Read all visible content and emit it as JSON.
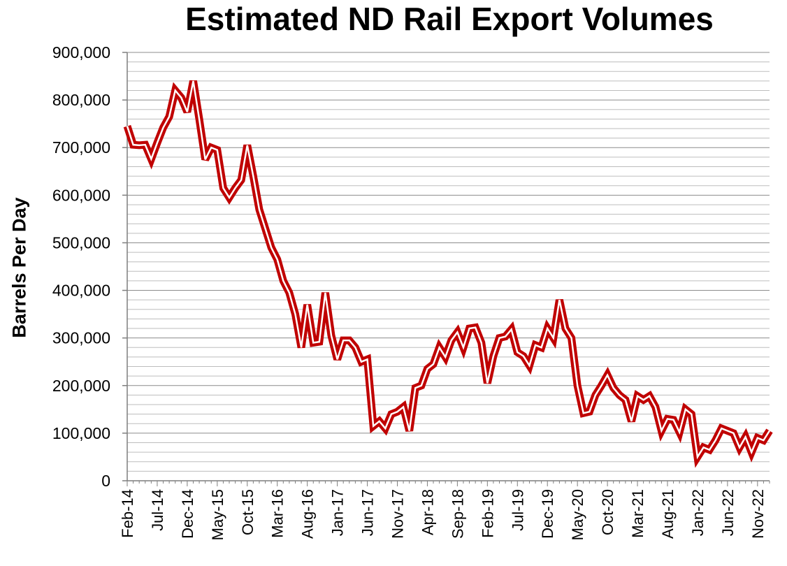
{
  "chart_data": {
    "type": "line",
    "title": "Estimated ND Rail Export Volumes",
    "ylabel": "Barrels Per Day",
    "xlabel": "",
    "ylim": [
      0,
      900000
    ],
    "y_ticks": [
      0,
      100000,
      200000,
      300000,
      400000,
      500000,
      600000,
      700000,
      800000,
      900000
    ],
    "y_tick_labels": [
      "0",
      "100,000",
      "200,000",
      "300,000",
      "400,000",
      "500,000",
      "600,000",
      "700,000",
      "800,000",
      "900,000"
    ],
    "x_tick_labels": [
      "Feb-14",
      "Jul-14",
      "Dec-14",
      "May-15",
      "Oct-15",
      "Mar-16",
      "Aug-16",
      "Jan-17",
      "Jun-17",
      "Nov-17",
      "Apr-18",
      "Sep-18",
      "Feb-19",
      "Jul-19",
      "Dec-19",
      "May-20",
      "Oct-20",
      "Mar-21",
      "Aug-21",
      "Jan-22",
      "Jun-22",
      "Nov-22"
    ],
    "grid": true,
    "line_color": "#c00000",
    "series": [
      {
        "name": "",
        "x_start": "Feb-14",
        "x_end": "Mar-23",
        "values": [
          745000,
          706000,
          705000,
          706000,
          676000,
          710000,
          742000,
          765000,
          820000,
          805000,
          775000,
          840000,
          760000,
          675000,
          700000,
          695000,
          615000,
          595000,
          615000,
          632000,
          705000,
          640000,
          570000,
          530000,
          490000,
          465000,
          420000,
          395000,
          350000,
          280000,
          370000,
          290000,
          292000,
          395000,
          305000,
          255000,
          295000,
          295000,
          280000,
          250000,
          255000,
          115000,
          125000,
          110000,
          140000,
          145000,
          155000,
          105000,
          195000,
          200000,
          235000,
          245000,
          280000,
          260000,
          295000,
          312000,
          280000,
          320000,
          322000,
          290000,
          205000,
          262000,
          300000,
          303000,
          318000,
          270000,
          262000,
          242000,
          285000,
          280000,
          320000,
          300000,
          380000,
          320000,
          300000,
          200000,
          142000,
          145000,
          180000,
          200000,
          222000,
          195000,
          180000,
          170000,
          125000,
          178000,
          170000,
          178000,
          155000,
          105000,
          130000,
          128000,
          102000,
          150000,
          140000,
          50000,
          70000,
          65000,
          85000,
          110000,
          105000,
          100000,
          70000,
          92000,
          60000,
          90000,
          85000,
          105000
        ]
      }
    ]
  }
}
